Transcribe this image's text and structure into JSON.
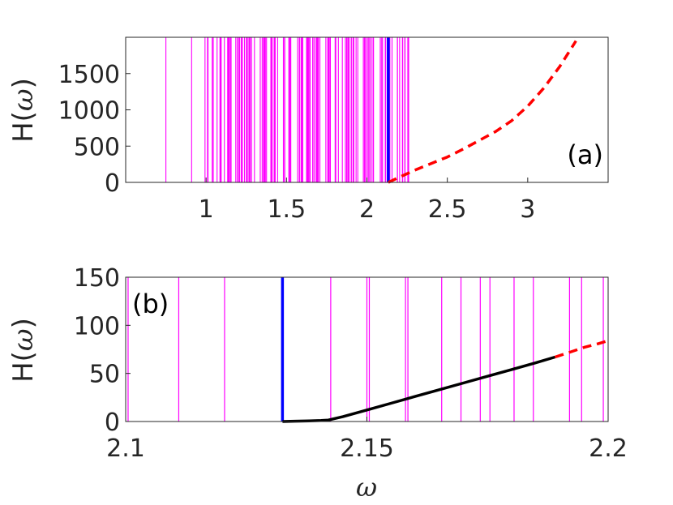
{
  "chart_data": [
    {
      "type": "line",
      "panel_label": "(a)",
      "ylabel_main": "H(",
      "ylabel_var": "ω",
      "ylabel_close": ")",
      "xlim": [
        0.5,
        3.5
      ],
      "ylim": [
        0,
        2000
      ],
      "xticks": [
        {
          "value": 1,
          "label": "1"
        },
        {
          "value": 1.5,
          "label": "1.5"
        },
        {
          "value": 2,
          "label": "2"
        },
        {
          "value": 2.5,
          "label": "2.5"
        },
        {
          "value": 3,
          "label": "3"
        }
      ],
      "yticks": [
        {
          "value": 0,
          "label": "0"
        },
        {
          "value": 500,
          "label": "500"
        },
        {
          "value": 1000,
          "label": "1000"
        },
        {
          "value": 1500,
          "label": "1500"
        }
      ],
      "colors": {
        "vlines": "#ff00ff",
        "marker": "#0000ff",
        "curve": "#ff0000"
      },
      "vlines_sparse": [
        0.75,
        0.91
      ],
      "vlines_dense_range": [
        0.99,
        2.27
      ],
      "vlines_dense_count": 140,
      "marker_x": 2.133,
      "series": [
        {
          "style": "dashed",
          "color": "#ff0000",
          "x": [
            2.133,
            2.2,
            2.3,
            2.4,
            2.5,
            2.6,
            2.7,
            2.8,
            2.9,
            3.0,
            3.1,
            3.2,
            3.3
          ],
          "y": [
            0,
            70,
            170,
            260,
            350,
            460,
            580,
            700,
            850,
            1050,
            1300,
            1600,
            1950
          ]
        }
      ]
    },
    {
      "type": "line",
      "panel_label": "(b)",
      "ylabel_main": "H(",
      "ylabel_var": "ω",
      "ylabel_close": ")",
      "xlabel": "ω",
      "xlim": [
        2.1,
        2.2
      ],
      "ylim": [
        0,
        150
      ],
      "xticks": [
        {
          "value": 2.1,
          "label": "2.1"
        },
        {
          "value": 2.15,
          "label": "2.15"
        },
        {
          "value": 2.2,
          "label": "2.2"
        }
      ],
      "yticks": [
        {
          "value": 0,
          "label": "0"
        },
        {
          "value": 50,
          "label": "50"
        },
        {
          "value": 100,
          "label": "100"
        },
        {
          "value": 150,
          "label": "150"
        }
      ],
      "colors": {
        "vlines": "#ff00ff",
        "marker": "#0000ff"
      },
      "vlines": [
        2.1005,
        2.111,
        2.1205,
        2.1425,
        2.15,
        2.1505,
        2.158,
        2.1585,
        2.1655,
        2.1695,
        2.1735,
        2.1755,
        2.1805,
        2.1845,
        2.192,
        2.1945,
        2.199
      ],
      "marker_x": 2.1325,
      "series": [
        {
          "style": "solid",
          "color": "#000000",
          "x": [
            2.1325,
            2.135,
            2.138,
            2.1405,
            2.142,
            2.145,
            2.15,
            2.155,
            2.16,
            2.165,
            2.17,
            2.175,
            2.18,
            2.185,
            2.189
          ],
          "y": [
            0,
            0.3,
            0.6,
            1,
            1.5,
            5,
            12,
            19,
            26,
            33,
            40,
            47,
            54,
            61,
            67
          ]
        },
        {
          "style": "dashed",
          "color": "#ff0000",
          "x": [
            2.189,
            2.192,
            2.195,
            2.198,
            2.2
          ],
          "y": [
            67,
            72,
            77,
            81,
            84
          ]
        }
      ]
    }
  ]
}
